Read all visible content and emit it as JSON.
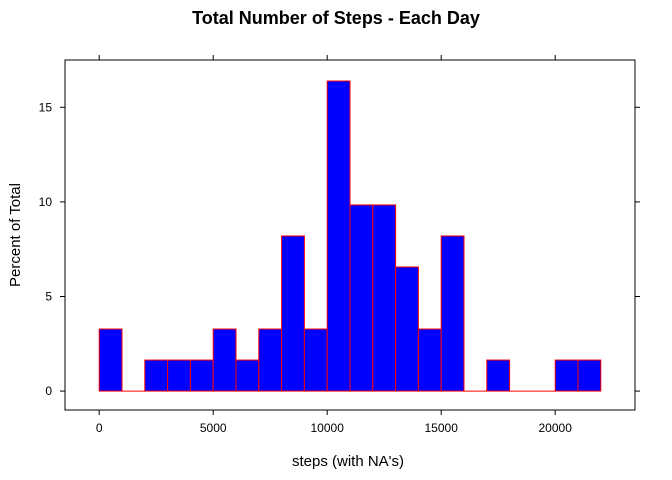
{
  "chart_data": {
    "type": "bar",
    "title": "Total Number of Steps - Each Day",
    "xlabel": "steps (with NA's)",
    "ylabel": "Percent of Total",
    "bin_width": 1000,
    "bins": [
      {
        "x0": 0,
        "x1": 1000,
        "value": 3.28
      },
      {
        "x0": 1000,
        "x1": 2000,
        "value": 0
      },
      {
        "x0": 2000,
        "x1": 3000,
        "value": 1.64
      },
      {
        "x0": 3000,
        "x1": 4000,
        "value": 1.64
      },
      {
        "x0": 4000,
        "x1": 5000,
        "value": 1.64
      },
      {
        "x0": 5000,
        "x1": 6000,
        "value": 3.28
      },
      {
        "x0": 6000,
        "x1": 7000,
        "value": 1.64
      },
      {
        "x0": 7000,
        "x1": 8000,
        "value": 3.28
      },
      {
        "x0": 8000,
        "x1": 9000,
        "value": 8.2
      },
      {
        "x0": 9000,
        "x1": 10000,
        "value": 3.28
      },
      {
        "x0": 10000,
        "x1": 11000,
        "value": 16.39
      },
      {
        "x0": 11000,
        "x1": 12000,
        "value": 9.84
      },
      {
        "x0": 12000,
        "x1": 13000,
        "value": 9.84
      },
      {
        "x0": 13000,
        "x1": 14000,
        "value": 6.56
      },
      {
        "x0": 14000,
        "x1": 15000,
        "value": 3.28
      },
      {
        "x0": 15000,
        "x1": 16000,
        "value": 8.2
      },
      {
        "x0": 16000,
        "x1": 17000,
        "value": 0
      },
      {
        "x0": 17000,
        "x1": 18000,
        "value": 1.64
      },
      {
        "x0": 18000,
        "x1": 19000,
        "value": 0
      },
      {
        "x0": 19000,
        "x1": 20000,
        "value": 0
      },
      {
        "x0": 20000,
        "x1": 21000,
        "value": 1.64
      },
      {
        "x0": 21000,
        "x1": 22000,
        "value": 1.64
      }
    ],
    "xlim": [
      -1500,
      23500
    ],
    "ylim": [
      -1,
      17.5
    ],
    "x_ticks": [
      0,
      5000,
      10000,
      15000,
      20000
    ],
    "x_tick_labels": [
      "0",
      "5000",
      "10000",
      "15000",
      "20000"
    ],
    "y_ticks": [
      0,
      5,
      10,
      15
    ],
    "y_tick_labels": [
      "0",
      "5",
      "10",
      "15"
    ],
    "bar_fill": "#0000ff",
    "bar_stroke": "#ff0000",
    "grid": false,
    "legend": "none"
  }
}
